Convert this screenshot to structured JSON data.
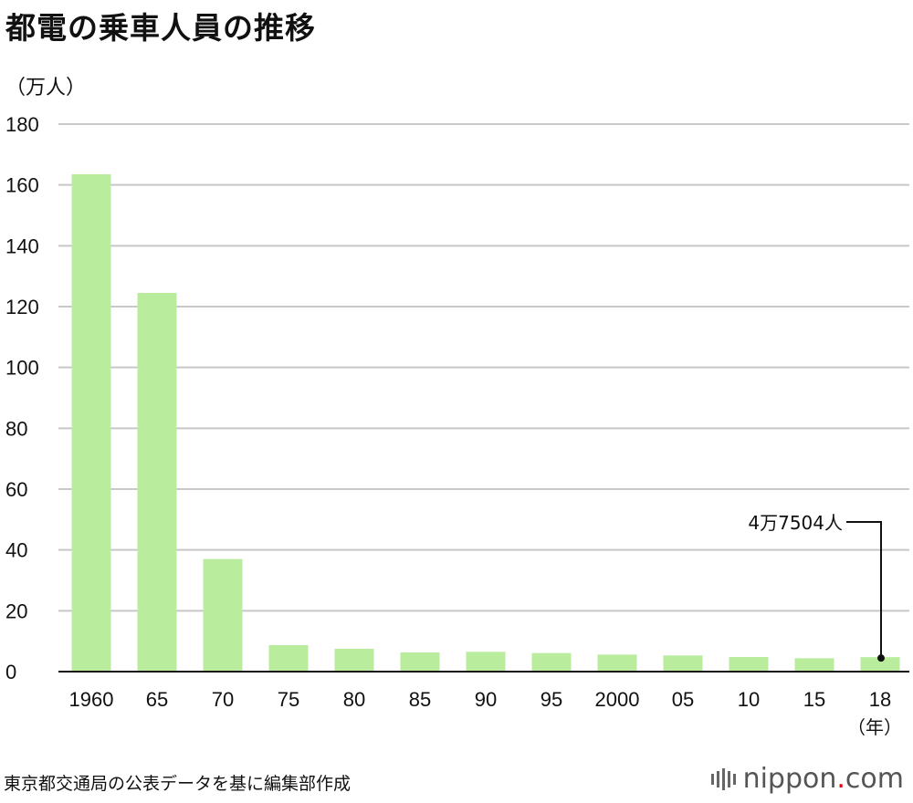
{
  "title": "都電の乗車人員の推移",
  "unit_label": "（万人）",
  "year_unit": "（年）",
  "source": "東京都交通局の公表データを基に編集部作成",
  "logo": {
    "name": "nippon",
    "dot": ".",
    "tld": "com"
  },
  "colors": {
    "bar": "#b9ec9d",
    "grid": "#c8c8c8",
    "axis": "#111111",
    "logo_dot": "#e60012"
  },
  "annotation": {
    "text": "4万7504人",
    "category": "18"
  },
  "chart_data": {
    "type": "bar",
    "categories": [
      "1960",
      "65",
      "70",
      "75",
      "80",
      "85",
      "90",
      "95",
      "2000",
      "05",
      "10",
      "15",
      "18"
    ],
    "values": [
      163.5,
      124.5,
      37,
      8.7,
      7.5,
      6.3,
      6.5,
      6.1,
      5.6,
      5.3,
      4.8,
      4.4,
      4.75
    ],
    "ylim": [
      0,
      180
    ],
    "yticks": [
      0,
      20,
      40,
      60,
      80,
      100,
      120,
      140,
      160,
      180
    ],
    "grid": true
  }
}
